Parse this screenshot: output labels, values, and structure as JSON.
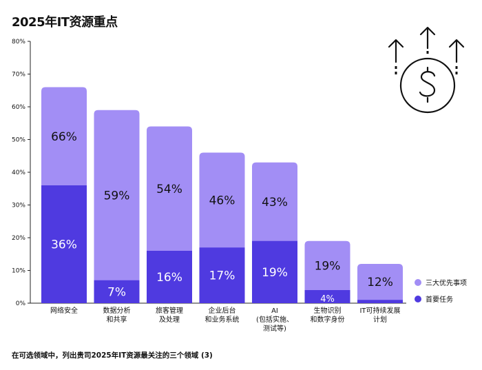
{
  "header": {
    "title": "2025年IT资源重点"
  },
  "footnote": "在可选领域中，列出贵司2025年IT资源最关注的三个领域 (3)",
  "icons": {
    "money": "dollar-up-arrows-icon"
  },
  "colors": {
    "top3": "#a28ef5",
    "primary": "#4f3ae0",
    "axis": "#222222",
    "grid": "#cccccc"
  },
  "chart_data": {
    "type": "bar",
    "stacking": "overlay",
    "categories": [
      [
        "网络安全"
      ],
      [
        "数据分析",
        "和共享"
      ],
      [
        "旅客管理",
        "及处理"
      ],
      [
        "企业后台",
        "和业务系统"
      ],
      [
        "AI",
        "(包括实施、",
        "测试等)"
      ],
      [
        "生物识别",
        "和数字身份"
      ],
      [
        "IT可持续发展",
        "计划"
      ]
    ],
    "series": [
      {
        "name": "三大优先事项",
        "values": [
          66,
          59,
          54,
          46,
          43,
          19,
          12
        ],
        "labels": [
          "66%",
          "59%",
          "54%",
          "46%",
          "43%",
          "19%",
          "12%"
        ]
      },
      {
        "name": "首要任务",
        "values": [
          36,
          7,
          16,
          17,
          19,
          4,
          1
        ],
        "labels": [
          "36%",
          "7%",
          "16%",
          "17%",
          "19%",
          "4%",
          ""
        ]
      }
    ],
    "ylim": [
      0,
      80
    ],
    "yticks": [
      "0%",
      "10%",
      "20%",
      "30%",
      "40%",
      "50%",
      "60%",
      "70%",
      "80%"
    ],
    "legend": "right",
    "grid": false
  }
}
